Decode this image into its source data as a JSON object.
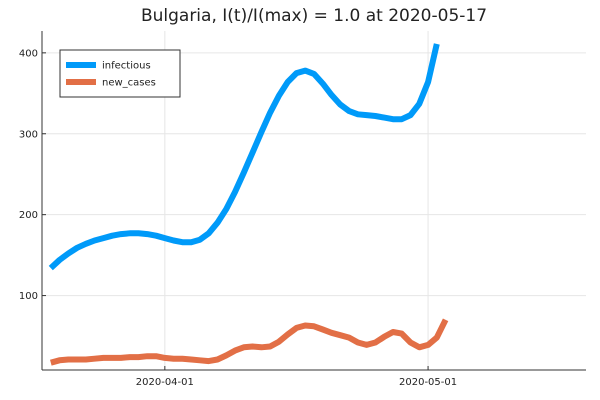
{
  "chart_data": {
    "type": "line",
    "title": "Bulgaria,  I(t)/I(max) = 1.0 at 2020-05-17",
    "xlabel": "",
    "ylabel": "",
    "x_start": "2020-03-19",
    "xlim": [
      "2020-03-18",
      "2020-05-19"
    ],
    "ylim": [
      8,
      427
    ],
    "xticks": [
      {
        "date": "2020-04-01",
        "label": "2020-04-01"
      },
      {
        "date": "2020-05-01",
        "label": "2020-05-01"
      }
    ],
    "yticks": [
      100,
      200,
      300,
      400
    ],
    "grid": true,
    "legend": "top-left",
    "series": [
      {
        "name": "infectious",
        "color": "#009AF9",
        "values": [
          134,
          144,
          152,
          159,
          164,
          168,
          171,
          174,
          176,
          177,
          177,
          176,
          174,
          171,
          168,
          166,
          166,
          169,
          177,
          190,
          207,
          228,
          252,
          277,
          302,
          326,
          347,
          364,
          375,
          378,
          374,
          362,
          348,
          336,
          328,
          324,
          323,
          322,
          320,
          318,
          318,
          323,
          337,
          364,
          411
        ]
      },
      {
        "name": "new_cases",
        "color": "#E26F46",
        "values": [
          17,
          20,
          21,
          21,
          21,
          22,
          23,
          23,
          23,
          24,
          24,
          25,
          25,
          23,
          22,
          22,
          21,
          20,
          19,
          21,
          26,
          32,
          36,
          37,
          36,
          37,
          43,
          52,
          60,
          63,
          62,
          58,
          54,
          51,
          48,
          42,
          39,
          42,
          49,
          55,
          53,
          42,
          36,
          39,
          48,
          70
        ]
      }
    ]
  }
}
